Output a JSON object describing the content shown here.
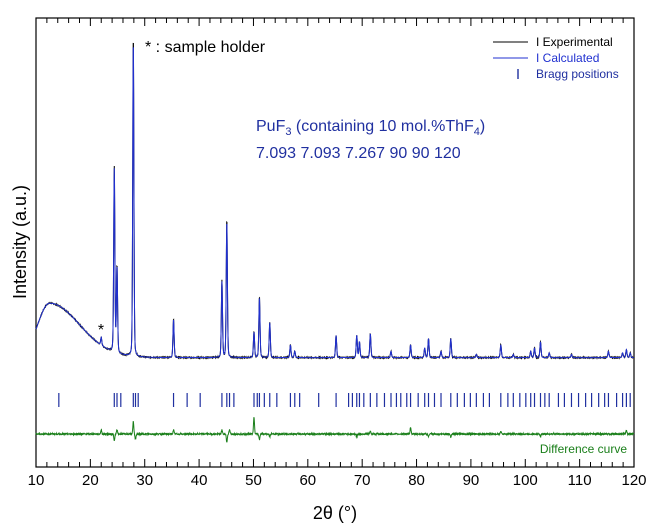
{
  "chart_data": {
    "type": "line",
    "xlabel": "2θ (°)",
    "ylabel": "Intensity (a.u.)",
    "xlim": [
      10,
      120
    ],
    "x_ticks": [
      10,
      20,
      30,
      40,
      50,
      60,
      70,
      80,
      90,
      100,
      110,
      120
    ],
    "y_ticks_visible": false,
    "grid": false,
    "legend": {
      "placement": "top-right",
      "entries": [
        {
          "label": "I Experimental",
          "color": "#000000",
          "style": "line"
        },
        {
          "label": "I Calculated",
          "color": "#2030d0",
          "style": "line"
        },
        {
          "label": "Bragg positions",
          "color": "#2030a0",
          "style": "tick"
        }
      ]
    },
    "annotations": {
      "sample_holder_marker": "*",
      "sample_holder_text": "* : sample holder",
      "phase_prefix": "PuF",
      "phase_subscript": "3",
      "phase_mid": " (containing 10 mol.%ThF",
      "phase_subscript2": "4",
      "phase_suffix": ")",
      "lattice": "7.093 7.093 7.267 90 90 120",
      "difference_label": "Difference curve"
    },
    "series": [
      {
        "name": "I Experimental",
        "color": "#000000"
      },
      {
        "name": "I Calculated",
        "color": "#2030d0"
      },
      {
        "name": "Difference curve",
        "color": "#1a7f1a"
      }
    ],
    "relative_intensity_scale": "0-100 (arbitrary units)",
    "background_hump": {
      "center": 12.5,
      "peak": 24,
      "baseline": 7
    },
    "peaks": [
      {
        "x": 22.0,
        "y": 2.5
      },
      {
        "x": 24.4,
        "y": 58
      },
      {
        "x": 24.9,
        "y": 27
      },
      {
        "x": 27.9,
        "y": 100
      },
      {
        "x": 35.3,
        "y": 12
      },
      {
        "x": 44.2,
        "y": 24
      },
      {
        "x": 45.1,
        "y": 43
      },
      {
        "x": 50.1,
        "y": 8
      },
      {
        "x": 51.1,
        "y": 19
      },
      {
        "x": 53.0,
        "y": 11
      },
      {
        "x": 56.8,
        "y": 4
      },
      {
        "x": 57.6,
        "y": 2
      },
      {
        "x": 65.2,
        "y": 7
      },
      {
        "x": 69.0,
        "y": 7
      },
      {
        "x": 69.5,
        "y": 5
      },
      {
        "x": 71.5,
        "y": 7.5
      },
      {
        "x": 75.3,
        "y": 2
      },
      {
        "x": 78.9,
        "y": 4
      },
      {
        "x": 81.5,
        "y": 3
      },
      {
        "x": 82.2,
        "y": 6
      },
      {
        "x": 84.5,
        "y": 2
      },
      {
        "x": 86.3,
        "y": 6
      },
      {
        "x": 91.0,
        "y": 1
      },
      {
        "x": 95.5,
        "y": 4
      },
      {
        "x": 97.8,
        "y": 1
      },
      {
        "x": 101.0,
        "y": 2
      },
      {
        "x": 101.7,
        "y": 3
      },
      {
        "x": 102.8,
        "y": 5
      },
      {
        "x": 104.4,
        "y": 1.5
      },
      {
        "x": 108.5,
        "y": 1
      },
      {
        "x": 115.3,
        "y": 2
      },
      {
        "x": 117.9,
        "y": 1.5
      },
      {
        "x": 118.6,
        "y": 2.5
      },
      {
        "x": 119.3,
        "y": 1.5
      }
    ],
    "bragg_positions": [
      14.2,
      24.4,
      24.9,
      25.6,
      27.9,
      28.3,
      28.8,
      35.3,
      37.8,
      40.2,
      44.2,
      45.1,
      45.6,
      46.4,
      50.1,
      50.7,
      51.1,
      52.0,
      53.0,
      54.3,
      56.8,
      57.6,
      58.5,
      62.0,
      65.2,
      67.5,
      68.2,
      69.0,
      69.5,
      70.3,
      71.5,
      72.7,
      74.1,
      75.3,
      76.3,
      77.1,
      78.2,
      78.9,
      80.3,
      81.5,
      82.2,
      83.3,
      84.5,
      86.3,
      87.5,
      88.8,
      89.9,
      91.0,
      92.3,
      93.4,
      95.5,
      96.8,
      97.8,
      99.0,
      100.1,
      101.0,
      101.7,
      102.8,
      103.6,
      104.4,
      106.1,
      107.2,
      108.5,
      109.8,
      111.1,
      112.2,
      113.5,
      114.6,
      115.3,
      116.8,
      117.9,
      118.6,
      119.3
    ],
    "difference_spikes": [
      {
        "x": 22.0,
        "y": 3
      },
      {
        "x": 24.4,
        "y": -5
      },
      {
        "x": 24.9,
        "y": 3
      },
      {
        "x": 27.9,
        "y": 9
      },
      {
        "x": 28.3,
        "y": -4
      },
      {
        "x": 35.3,
        "y": 3
      },
      {
        "x": 44.2,
        "y": 3
      },
      {
        "x": 45.1,
        "y": -6
      },
      {
        "x": 45.6,
        "y": 3
      },
      {
        "x": 50.1,
        "y": 12
      },
      {
        "x": 51.1,
        "y": -4
      },
      {
        "x": 53.0,
        "y": -2
      },
      {
        "x": 69.0,
        "y": -2
      },
      {
        "x": 71.5,
        "y": 2
      },
      {
        "x": 78.9,
        "y": 5
      },
      {
        "x": 82.2,
        "y": -2
      },
      {
        "x": 86.3,
        "y": -2
      },
      {
        "x": 95.5,
        "y": 2
      },
      {
        "x": 102.8,
        "y": -2
      },
      {
        "x": 118.6,
        "y": 3
      }
    ]
  }
}
